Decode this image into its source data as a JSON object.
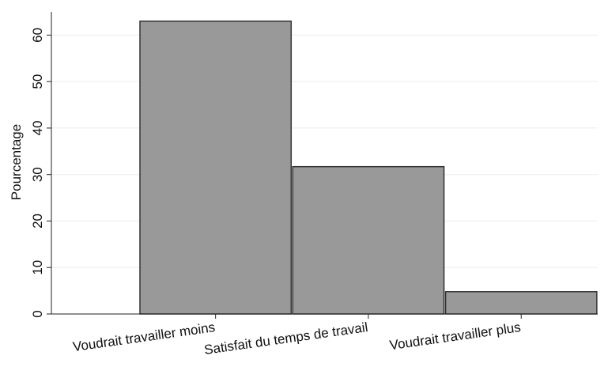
{
  "chart_data": {
    "type": "bar",
    "y_label": "Pourcentage",
    "categories": [
      "Voudrait travailler moins",
      "Satisfait du temps de travail",
      "Voudrait travailler plus"
    ],
    "values": [
      63,
      31.7,
      4.8
    ],
    "color": "#999999",
    "ylim": [
      0,
      65
    ],
    "yticks": [
      0,
      10,
      20,
      30,
      40,
      50,
      60
    ],
    "grid": true
  }
}
